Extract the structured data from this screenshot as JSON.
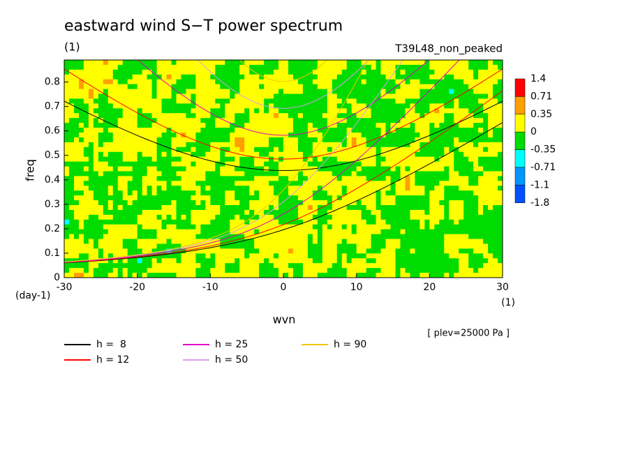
{
  "chart_data": {
    "type": "contour",
    "title": "eastward wind S−T power spectrum",
    "subtitle": "(1)",
    "experiment": "T39L48_non_peaked",
    "x_label": "wvn",
    "x_unit": "(1)",
    "y_label": "freq",
    "y_unit": "(day-1)",
    "note": "[ plev=25000 Pa ]",
    "xlim": [
      -30,
      30
    ],
    "xticks": [
      -30,
      -20,
      -10,
      0,
      10,
      20,
      30
    ],
    "ylim": [
      0,
      0.89
    ],
    "yticks": [
      0.0,
      0.1,
      0.2,
      0.3,
      0.4,
      0.5,
      0.6,
      0.7,
      0.8
    ],
    "levels": [
      1.4,
      0.71,
      0.35,
      0,
      -0.35,
      -0.71,
      -1.1,
      -1.8
    ],
    "level_colors": [
      "#ff0000",
      "#ffa000",
      "#ffff00",
      "#00dc00",
      "#00ffff",
      "#0096ff",
      "#0050ff"
    ],
    "series": [
      {
        "name": "h =  8",
        "h": 8,
        "color": "#000000"
      },
      {
        "name": "h = 12",
        "h": 12,
        "color": "#ff0000"
      },
      {
        "name": "h = 25",
        "h": 25,
        "color": "#e000c0"
      },
      {
        "name": "h = 50",
        "h": 50,
        "color": "#d8a0e8"
      },
      {
        "name": "h = 90",
        "h": 90,
        "color": "#f0c800"
      }
    ]
  }
}
